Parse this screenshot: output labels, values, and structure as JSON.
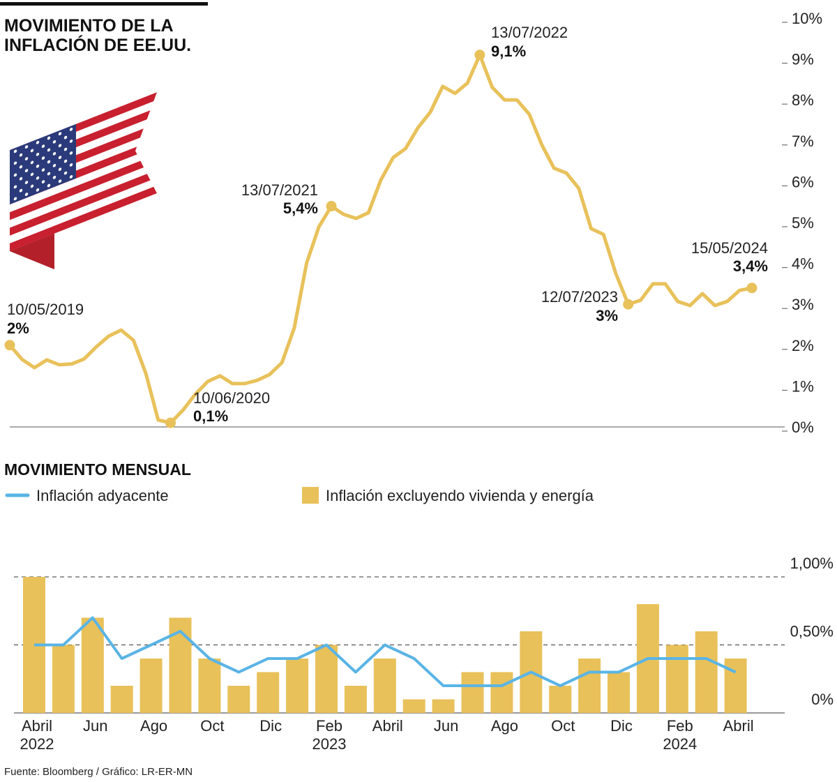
{
  "charts_title": [
    "MOVIMIENTO DE LA",
    "INFLACIÓN DE EE.UU."
  ],
  "chart_data": [
    {
      "type": "line",
      "color": "#e8c15a",
      "values": [
        2,
        1.65,
        1.45,
        1.64,
        1.52,
        1.54,
        1.66,
        1.96,
        2.22,
        2.37,
        2.12,
        1.31,
        0.17,
        0.1,
        0.41,
        0.8,
        1.11,
        1.25,
        1.06,
        1.06,
        1.14,
        1.28,
        1.57,
        2.42,
        4.01,
        4.9,
        5.4,
        5.2,
        5.1,
        5.24,
        6.04,
        6.59,
        6.81,
        7.32,
        7.7,
        8.33,
        8.16,
        8.41,
        9.1,
        8.31,
        8.0,
        8.0,
        7.65,
        6.91,
        6.33,
        6.21,
        5.84,
        4.85,
        4.71,
        3.75,
        3,
        3.1,
        3.5,
        3.5,
        3.07,
        2.97,
        3.26,
        2.97,
        3.07,
        3.34,
        3.4
      ],
      "ylim": [
        0,
        10
      ],
      "yticks": [
        {
          "value": 0,
          "label": "0%"
        },
        {
          "value": 1,
          "label": "1%"
        },
        {
          "value": 2,
          "label": "2%"
        },
        {
          "value": 3,
          "label": "3%"
        },
        {
          "value": 4,
          "label": "4%"
        },
        {
          "value": 5,
          "label": "5%"
        },
        {
          "value": 6,
          "label": "6%"
        },
        {
          "value": 7,
          "label": "7%"
        },
        {
          "value": 8,
          "label": "8%"
        },
        {
          "value": 9,
          "label": "9%"
        },
        {
          "value": 10,
          "label": "10%"
        }
      ],
      "annotations": [
        {
          "date": "10/05/2019",
          "value": 2,
          "value_label": "2%"
        },
        {
          "date": "10/06/2020",
          "value": 0.1,
          "value_label": "0,1%"
        },
        {
          "date": "13/07/2021",
          "value": 5.4,
          "value_label": "5,4%"
        },
        {
          "date": "13/07/2022",
          "value": 9.1,
          "value_label": "9,1%"
        },
        {
          "date": "12/07/2023",
          "value": 3,
          "value_label": "3%"
        },
        {
          "date": "15/05/2024",
          "value": 3.4,
          "value_label": "3,4%"
        }
      ]
    },
    {
      "type": "bar",
      "title": "MOVIMIENTO MENSUAL",
      "categories": [
        "Abril",
        null,
        "Jun",
        null,
        "Ago",
        null,
        "Oct",
        null,
        "Dic",
        null,
        "Feb",
        null,
        "Abril",
        null,
        "Jun",
        null,
        "Ago",
        null,
        "Oct",
        null,
        "Dic",
        null,
        "Feb",
        null,
        "Abril"
      ],
      "years": [
        "2022",
        null,
        null,
        null,
        null,
        null,
        null,
        null,
        null,
        null,
        "2023",
        null,
        null,
        null,
        null,
        null,
        null,
        null,
        null,
        null,
        null,
        null,
        "2024",
        null,
        null
      ],
      "series": [
        {
          "name": "Inflación adyacente",
          "type": "line",
          "color": "#5ab4e5",
          "values": [
            0.5,
            0.5,
            0.7,
            0.4,
            0.5,
            0.6,
            0.4,
            0.3,
            0.4,
            0.4,
            0.5,
            0.3,
            0.5,
            0.4,
            0.2,
            0.2,
            0.2,
            0.3,
            0.2,
            0.3,
            0.3,
            0.4,
            0.4,
            0.4,
            0.3
          ]
        },
        {
          "name": "Inflación excluyendo vivienda y energía",
          "type": "bar",
          "color": "#e8c15a",
          "values": [
            1.0,
            0.5,
            0.7,
            0.2,
            0.4,
            0.7,
            0.4,
            0.2,
            0.3,
            0.4,
            0.5,
            0.2,
            0.4,
            0.1,
            0.1,
            0.3,
            0.3,
            0.6,
            0.2,
            0.4,
            0.3,
            0.8,
            0.5,
            0.6,
            0.4
          ]
        }
      ],
      "ylim": [
        0,
        1
      ],
      "yticks": [
        {
          "value": 0,
          "label": "0%"
        },
        {
          "value": 0.5,
          "label": "0,50%"
        },
        {
          "value": 1,
          "label": "1,00%"
        }
      ],
      "grid": true
    }
  ],
  "source": "Fuente: Bloomberg / Gráfico: LR-ER-MN"
}
